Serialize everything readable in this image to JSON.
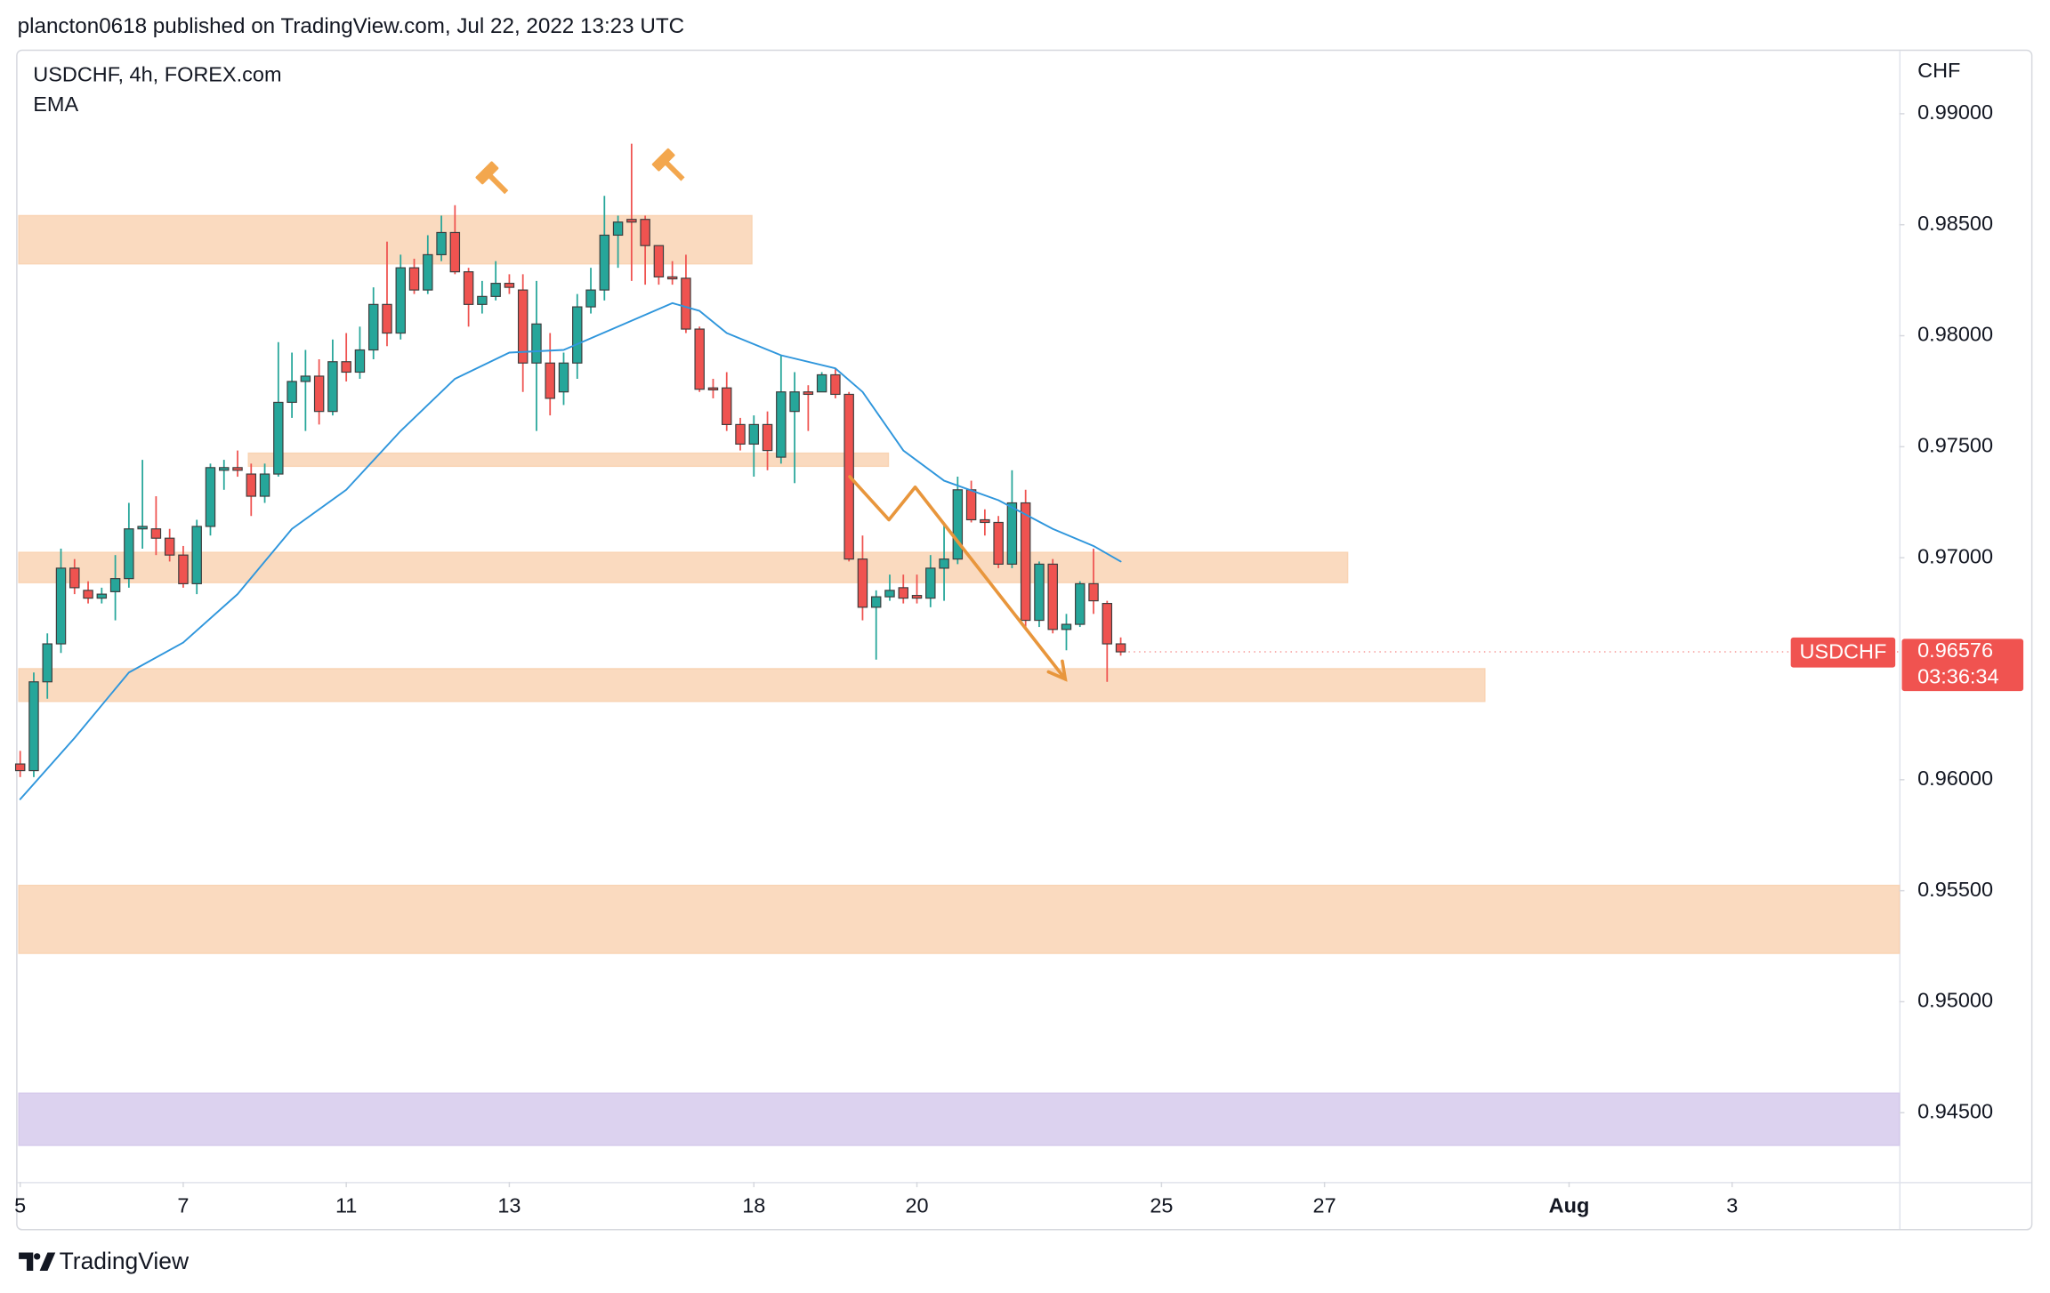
{
  "header": {
    "text": "plancton0618 published on TradingView.com, Jul 22, 2022 13:23 UTC"
  },
  "chart_data": {
    "type": "candlestick",
    "title": "USDCHF, 4h, FOREX.com",
    "indicator": "EMA",
    "currency": "CHF",
    "xlim": [
      -0.2,
      138.3
    ],
    "ylim": [
      0.94188,
      0.99277
    ],
    "xticks": [
      {
        "value": 0,
        "label": "5"
      },
      {
        "value": 12,
        "label": "7"
      },
      {
        "value": 24,
        "label": "11"
      },
      {
        "value": 36,
        "label": "13"
      },
      {
        "value": 54,
        "label": "18"
      },
      {
        "value": 66,
        "label": "20"
      },
      {
        "value": 84,
        "label": "25"
      },
      {
        "value": 96,
        "label": "27"
      },
      {
        "value": 114,
        "label": "Aug"
      },
      {
        "value": 126,
        "label": "3"
      }
    ],
    "yticks": [
      {
        "value": 0.99,
        "label": "0.99000"
      },
      {
        "value": 0.985,
        "label": "0.98500"
      },
      {
        "value": 0.98,
        "label": "0.98000"
      },
      {
        "value": 0.975,
        "label": "0.97500"
      },
      {
        "value": 0.97,
        "label": "0.97000"
      },
      {
        "value": 0.96,
        "label": "0.96000"
      },
      {
        "value": 0.955,
        "label": "0.95500"
      },
      {
        "value": 0.95,
        "label": "0.95000"
      },
      {
        "value": 0.945,
        "label": "0.94500"
      }
    ],
    "up_color": "#26a69a",
    "down_color": "#ef5350",
    "open": [
      0.96071,
      0.96041,
      0.96441,
      0.96612,
      0.96953,
      0.96853,
      0.96818,
      0.96847,
      0.96906,
      0.9713,
      0.9713,
      0.97088,
      0.97012,
      0.96883,
      0.97141,
      0.97394,
      0.97406,
      0.97377,
      0.97277,
      0.97377,
      0.977,
      0.97794,
      0.97818,
      0.97659,
      0.97883,
      0.97836,
      0.97936,
      0.98141,
      0.98012,
      0.98306,
      0.98206,
      0.98365,
      0.98465,
      0.98288,
      0.98141,
      0.98177,
      0.98236,
      0.98206,
      0.97877,
      0.97877,
      0.97747,
      0.97877,
      0.9813,
      0.98206,
      0.98453,
      0.98524,
      0.98524,
      0.98406,
      0.98265,
      0.98259,
      0.9803,
      0.97765,
      0.97765,
      0.976,
      0.97512,
      0.976,
      0.97453,
      0.97659,
      0.97747,
      0.97747,
      0.97824,
      0.97736,
      0.96994,
      0.96777,
      0.96824,
      0.96865,
      0.9683,
      0.96818,
      0.96953,
      0.96994,
      0.97306,
      0.97171,
      0.97159,
      0.96971,
      0.97247,
      0.96718,
      0.96971,
      0.96677,
      0.967,
      0.96883,
      0.96794,
      0.96612
    ],
    "high": [
      0.9613,
      0.96483,
      0.96659,
      0.97041,
      0.96994,
      0.96894,
      0.96865,
      0.97012,
      0.97247,
      0.97441,
      0.97277,
      0.9713,
      0.97053,
      0.97171,
      0.97424,
      0.97441,
      0.97483,
      0.97424,
      0.97424,
      0.97971,
      0.97924,
      0.97936,
      0.97894,
      0.97983,
      0.98012,
      0.98041,
      0.98218,
      0.98424,
      0.98365,
      0.98347,
      0.98453,
      0.98541,
      0.98588,
      0.98306,
      0.98247,
      0.98336,
      0.98277,
      0.98277,
      0.98247,
      0.98012,
      0.97924,
      0.98188,
      0.98306,
      0.9863,
      0.98541,
      0.98865,
      0.98541,
      0.98394,
      0.98336,
      0.98365,
      0.98041,
      0.97806,
      0.97836,
      0.9763,
      0.97641,
      0.97659,
      0.97912,
      0.97836,
      0.97777,
      0.97836,
      0.97853,
      0.97747,
      0.971,
      0.96853,
      0.96924,
      0.96924,
      0.96924,
      0.97012,
      0.97159,
      0.97365,
      0.97347,
      0.97218,
      0.97188,
      0.97394,
      0.97306,
      0.96983,
      0.96994,
      0.96747,
      0.96894,
      0.97041,
      0.96806,
      0.96641
    ],
    "low": [
      0.96012,
      0.96012,
      0.96365,
      0.96571,
      0.96836,
      0.96794,
      0.96794,
      0.96718,
      0.96865,
      0.97041,
      0.97012,
      0.96983,
      0.96865,
      0.96836,
      0.971,
      0.97306,
      0.97365,
      0.97188,
      0.97247,
      0.97365,
      0.9763,
      0.97571,
      0.976,
      0.97641,
      0.97794,
      0.97806,
      0.97894,
      0.97953,
      0.97983,
      0.98188,
      0.98188,
      0.98336,
      0.98277,
      0.98041,
      0.981,
      0.98159,
      0.98188,
      0.97747,
      0.97571,
      0.97641,
      0.97688,
      0.97806,
      0.981,
      0.98159,
      0.98306,
      0.98247,
      0.9823,
      0.9823,
      0.9823,
      0.98012,
      0.97747,
      0.97718,
      0.97571,
      0.97483,
      0.97365,
      0.97394,
      0.97424,
      0.97336,
      0.97571,
      0.97747,
      0.97718,
      0.96983,
      0.96718,
      0.96541,
      0.96806,
      0.96794,
      0.96794,
      0.96777,
      0.96806,
      0.96971,
      0.97159,
      0.971,
      0.96953,
      0.96953,
      0.96688,
      0.96688,
      0.96659,
      0.96583,
      0.96688,
      0.96747,
      0.96441,
      0.96559
    ],
    "close": [
      0.96041,
      0.96441,
      0.96612,
      0.96953,
      0.96865,
      0.96818,
      0.96836,
      0.96906,
      0.9713,
      0.97141,
      0.97088,
      0.97012,
      0.96883,
      0.97141,
      0.97406,
      0.97406,
      0.97394,
      0.97277,
      0.97377,
      0.977,
      0.97794,
      0.97818,
      0.97659,
      0.97883,
      0.97836,
      0.97936,
      0.98141,
      0.98012,
      0.98306,
      0.98206,
      0.98365,
      0.98465,
      0.98288,
      0.98141,
      0.98177,
      0.98236,
      0.98218,
      0.97877,
      0.98053,
      0.97718,
      0.97877,
      0.9813,
      0.98206,
      0.98453,
      0.98512,
      0.98512,
      0.98406,
      0.98265,
      0.98259,
      0.9803,
      0.97759,
      0.97759,
      0.976,
      0.97512,
      0.976,
      0.97483,
      0.97747,
      0.97747,
      0.97736,
      0.97824,
      0.97736,
      0.96994,
      0.96777,
      0.96824,
      0.96853,
      0.96818,
      0.96818,
      0.96953,
      0.96994,
      0.97306,
      0.97171,
      0.97159,
      0.96971,
      0.97247,
      0.96718,
      0.96971,
      0.96677,
      0.967,
      0.96883,
      0.96806,
      0.96612,
      0.96576
    ],
    "ema": {
      "color": "#2f96dc",
      "x": [
        0,
        4,
        8,
        12,
        16,
        20,
        24,
        28,
        32,
        36,
        40,
        44,
        48,
        50,
        52,
        56,
        60,
        62,
        65,
        68,
        72,
        76,
        79,
        81
      ],
      "values": [
        0.95912,
        0.96188,
        0.96483,
        0.96618,
        0.96836,
        0.9713,
        0.97306,
        0.97571,
        0.97806,
        0.97924,
        0.97936,
        0.98041,
        0.98147,
        0.98112,
        0.98012,
        0.97912,
        0.97853,
        0.97747,
        0.97483,
        0.97347,
        0.97259,
        0.9713,
        0.97053,
        0.96983
      ]
    },
    "zones": [
      {
        "x0": -0.1,
        "x1": 53.85,
        "top": 0.98541,
        "bottom": 0.98324,
        "color": "#f9d4b4"
      },
      {
        "x0": 16.8,
        "x1": 63.9,
        "top": 0.97471,
        "bottom": 0.97412,
        "color": "#f9d4b4"
      },
      {
        "x0": -0.1,
        "x1": 97.7,
        "top": 0.97024,
        "bottom": 0.96888,
        "color": "#f9d4b4"
      },
      {
        "x0": -0.1,
        "x1": 107.8,
        "top": 0.965,
        "bottom": 0.96353,
        "color": "#f9d4b4"
      },
      {
        "x0": -0.1,
        "x1": 138.3,
        "top": 0.95524,
        "bottom": 0.95218,
        "color": "#f9d4b4"
      },
      {
        "x0": -0.1,
        "x1": 138.3,
        "top": 0.94588,
        "bottom": 0.94353,
        "color": "#d6caec"
      }
    ],
    "arrow": {
      "color": "#e8963c",
      "x": [
        61.06,
        63.94,
        65.87,
        76.92
      ],
      "values": [
        0.97365,
        0.97171,
        0.97318,
        0.96453
      ]
    },
    "last_price": {
      "symbol": "USDCHF",
      "value": 0.96576,
      "countdown": "03:36:34",
      "color": "#f05350"
    }
  },
  "footer": {
    "brand": "TradingView"
  }
}
